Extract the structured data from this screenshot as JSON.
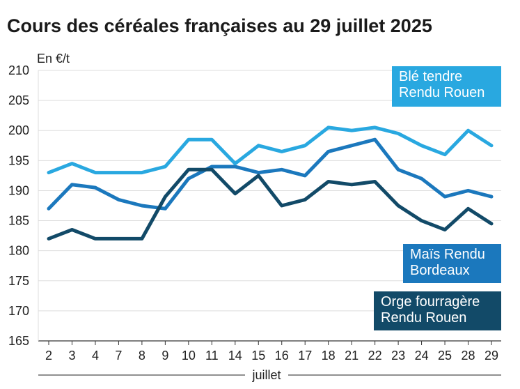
{
  "chart_data": {
    "type": "line",
    "title": "Cours des céréales françaises au 29 juillet 2025",
    "ylabel": "En €/t",
    "xlabel": "juillet",
    "ylim": [
      165,
      210
    ],
    "yticks": [
      165,
      170,
      175,
      180,
      185,
      190,
      195,
      200,
      205,
      210
    ],
    "categories": [
      "2",
      "3",
      "4",
      "7",
      "8",
      "9",
      "10",
      "11",
      "14",
      "15",
      "16",
      "17",
      "18",
      "21",
      "22",
      "23",
      "24",
      "25",
      "28",
      "29"
    ],
    "series": [
      {
        "name": "Blé tendre Rendu Rouen",
        "legend_lines": [
          "Blé tendre",
          "Rendu Rouen"
        ],
        "color": "#29a8e0",
        "values": [
          193,
          194.5,
          193,
          193,
          193,
          194,
          198.5,
          198.5,
          194.5,
          197.5,
          196.5,
          197.5,
          200.5,
          200,
          200.5,
          199.5,
          197.5,
          196,
          200,
          197.5
        ]
      },
      {
        "name": "Maïs Rendu Bordeaux",
        "legend_lines": [
          "Maïs Rendu",
          "Bordeaux"
        ],
        "color": "#1b78bd",
        "values": [
          187,
          191,
          190.5,
          188.5,
          187.5,
          187,
          192,
          194,
          194,
          193,
          193.5,
          192.5,
          196.5,
          197.5,
          198.5,
          193.5,
          192,
          189,
          190,
          189
        ]
      },
      {
        "name": "Orge fourragère Rendu Rouen",
        "legend_lines": [
          "Orge fourragère",
          "Rendu Rouen"
        ],
        "color": "#124a68",
        "values": [
          182,
          183.5,
          182,
          182,
          182,
          189,
          193.5,
          193.5,
          189.5,
          192.5,
          187.5,
          188.5,
          191.5,
          191,
          191.5,
          187.5,
          185,
          183.5,
          187,
          184.5
        ]
      }
    ]
  }
}
